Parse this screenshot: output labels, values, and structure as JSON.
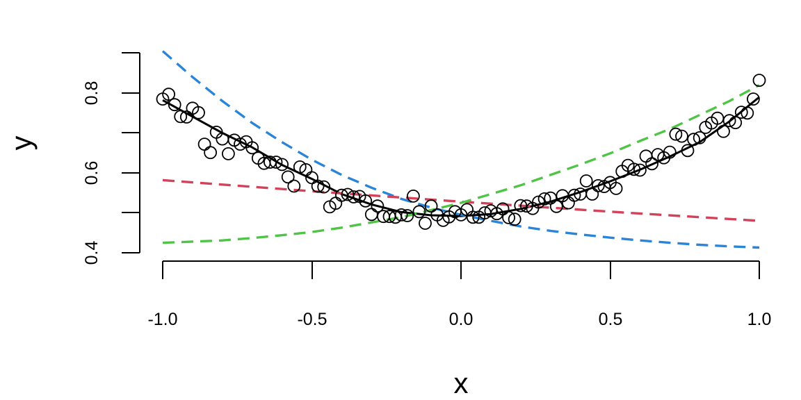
{
  "chart_data": {
    "type": "scatter",
    "title": "",
    "xlabel": "x",
    "ylabel": "y",
    "xlim": [
      -1.0,
      1.0
    ],
    "ylim": [
      0.4,
      0.9
    ],
    "x_ticks": [
      "-1.0",
      "-0.5",
      "0.0",
      "0.5",
      "1.0"
    ],
    "y_ticks": [
      "0.4",
      "0.6",
      "0.8"
    ],
    "grid": false,
    "legend": "none",
    "points": {
      "x": [
        -1.0,
        -0.98,
        -0.96,
        -0.94,
        -0.92,
        -0.9,
        -0.88,
        -0.86,
        -0.84,
        -0.82,
        -0.8,
        -0.78,
        -0.76,
        -0.74,
        -0.72,
        -0.7,
        -0.68,
        -0.66,
        -0.64,
        -0.62,
        -0.6,
        -0.58,
        -0.56,
        -0.54,
        -0.52,
        -0.5,
        -0.48,
        -0.46,
        -0.44,
        -0.42,
        -0.4,
        -0.38,
        -0.36,
        -0.34,
        -0.32,
        -0.3,
        -0.28,
        -0.26,
        -0.24,
        -0.22,
        -0.2,
        -0.18,
        -0.16,
        -0.14,
        -0.12,
        -0.1,
        -0.08,
        -0.06,
        -0.04,
        -0.02,
        0.0,
        0.02,
        0.04,
        0.06,
        0.08,
        0.1,
        0.12,
        0.14,
        0.16,
        0.18,
        0.2,
        0.22,
        0.24,
        0.26,
        0.28,
        0.3,
        0.32,
        0.34,
        0.36,
        0.38,
        0.4,
        0.42,
        0.44,
        0.46,
        0.48,
        0.5,
        0.52,
        0.54,
        0.56,
        0.58,
        0.6,
        0.62,
        0.64,
        0.66,
        0.68,
        0.7,
        0.72,
        0.74,
        0.76,
        0.78,
        0.8,
        0.82,
        0.84,
        0.86,
        0.88,
        0.9,
        0.92,
        0.94,
        0.96,
        0.98,
        1.0
      ],
      "y": [
        0.785,
        0.797,
        0.771,
        0.741,
        0.74,
        0.762,
        0.751,
        0.672,
        0.651,
        0.702,
        0.685,
        0.648,
        0.682,
        0.672,
        0.678,
        0.663,
        0.637,
        0.624,
        0.627,
        0.627,
        0.621,
        0.59,
        0.567,
        0.615,
        0.608,
        0.588,
        0.567,
        0.565,
        0.515,
        0.524,
        0.544,
        0.546,
        0.54,
        0.541,
        0.53,
        0.496,
        0.517,
        0.491,
        0.491,
        0.489,
        0.495,
        0.493,
        0.542,
        0.503,
        0.474,
        0.517,
        0.495,
        0.481,
        0.49,
        0.503,
        0.495,
        0.508,
        0.489,
        0.489,
        0.5,
        0.505,
        0.498,
        0.51,
        0.488,
        0.484,
        0.518,
        0.517,
        0.511,
        0.527,
        0.535,
        0.537,
        0.516,
        0.543,
        0.525,
        0.544,
        0.547,
        0.58,
        0.547,
        0.568,
        0.566,
        0.576,
        0.561,
        0.604,
        0.619,
        0.609,
        0.607,
        0.642,
        0.623,
        0.646,
        0.638,
        0.652,
        0.697,
        0.692,
        0.656,
        0.684,
        0.688,
        0.714,
        0.725,
        0.737,
        0.704,
        0.731,
        0.726,
        0.752,
        0.75,
        0.785,
        0.832
      ]
    },
    "series": [
      {
        "style": "solid",
        "color": "#000000",
        "x": [
          -1.0,
          -0.9,
          -0.8,
          -0.7,
          -0.6,
          -0.5,
          -0.4,
          -0.3,
          -0.2,
          -0.1,
          0.0,
          0.1,
          0.2,
          0.3,
          0.4,
          0.5,
          0.6,
          0.7,
          0.8,
          0.9,
          1.0
        ],
        "y": [
          0.782,
          0.741,
          0.7,
          0.664,
          0.62,
          0.585,
          0.547,
          0.521,
          0.502,
          0.494,
          0.492,
          0.497,
          0.51,
          0.528,
          0.552,
          0.579,
          0.608,
          0.641,
          0.677,
          0.729,
          0.79
        ]
      },
      {
        "style": "dashed",
        "color": "#2a85d8",
        "x": [
          -1.0,
          -0.9,
          -0.8,
          -0.7,
          -0.6,
          -0.5,
          -0.4,
          -0.3,
          -0.2,
          -0.1,
          0.0,
          0.1,
          0.2,
          0.3,
          0.4,
          0.5,
          0.6,
          0.7,
          0.8,
          0.9,
          1.0
        ],
        "y": [
          0.905,
          0.84,
          0.78,
          0.725,
          0.677,
          0.633,
          0.595,
          0.563,
          0.535,
          0.513,
          0.495,
          0.48,
          0.466,
          0.455,
          0.446,
          0.438,
          0.431,
          0.425,
          0.42,
          0.416,
          0.413
        ]
      },
      {
        "style": "dashed",
        "color": "#d1435b",
        "x": [
          -1.0,
          -0.5,
          0.0,
          0.5,
          1.0
        ],
        "y": [
          0.582,
          0.554,
          0.528,
          0.503,
          0.48
        ]
      },
      {
        "style": "dashed",
        "color": "#4fc447",
        "x": [
          -1.0,
          -0.9,
          -0.8,
          -0.7,
          -0.6,
          -0.5,
          -0.4,
          -0.3,
          -0.2,
          -0.1,
          0.0,
          0.1,
          0.2,
          0.3,
          0.4,
          0.5,
          0.6,
          0.7,
          0.8,
          0.9,
          1.0
        ],
        "y": [
          0.425,
          0.428,
          0.431,
          0.437,
          0.444,
          0.452,
          0.463,
          0.476,
          0.489,
          0.507,
          0.525,
          0.547,
          0.569,
          0.595,
          0.621,
          0.649,
          0.68,
          0.71,
          0.745,
          0.78,
          0.82
        ]
      }
    ]
  }
}
